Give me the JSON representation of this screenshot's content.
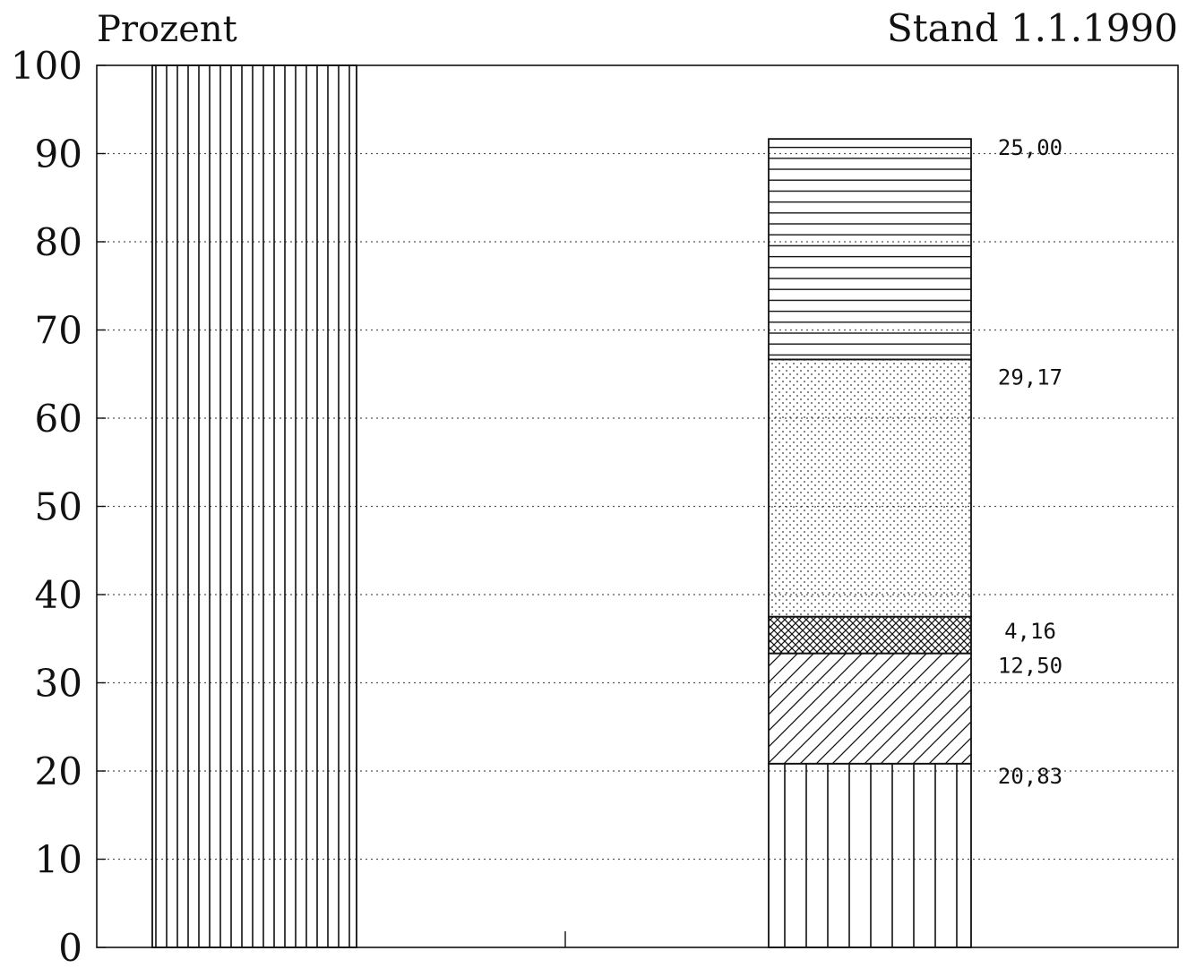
{
  "chart_data": {
    "type": "bar",
    "stacked": true,
    "ylabel": "Prozent",
    "date_label": "Stand 1.1.1990",
    "ylim": [
      0,
      100
    ],
    "yticks": [
      0,
      10,
      20,
      30,
      40,
      50,
      60,
      70,
      80,
      90,
      100
    ],
    "grid": true,
    "bars": [
      {
        "segments": [
          {
            "value": 100,
            "pattern": "vertical-dense",
            "label": ""
          }
        ]
      },
      {
        "segments": [
          {
            "value": 20.83,
            "pattern": "vertical",
            "label": "20,83"
          },
          {
            "value": 12.5,
            "pattern": "diagonal",
            "label": "12,50"
          },
          {
            "value": 4.16,
            "pattern": "crosshatch",
            "label": "4,16"
          },
          {
            "value": 29.17,
            "pattern": "dots",
            "label": "29,17"
          },
          {
            "value": 25.0,
            "pattern": "horizontal",
            "label": "25,00"
          }
        ]
      }
    ]
  }
}
